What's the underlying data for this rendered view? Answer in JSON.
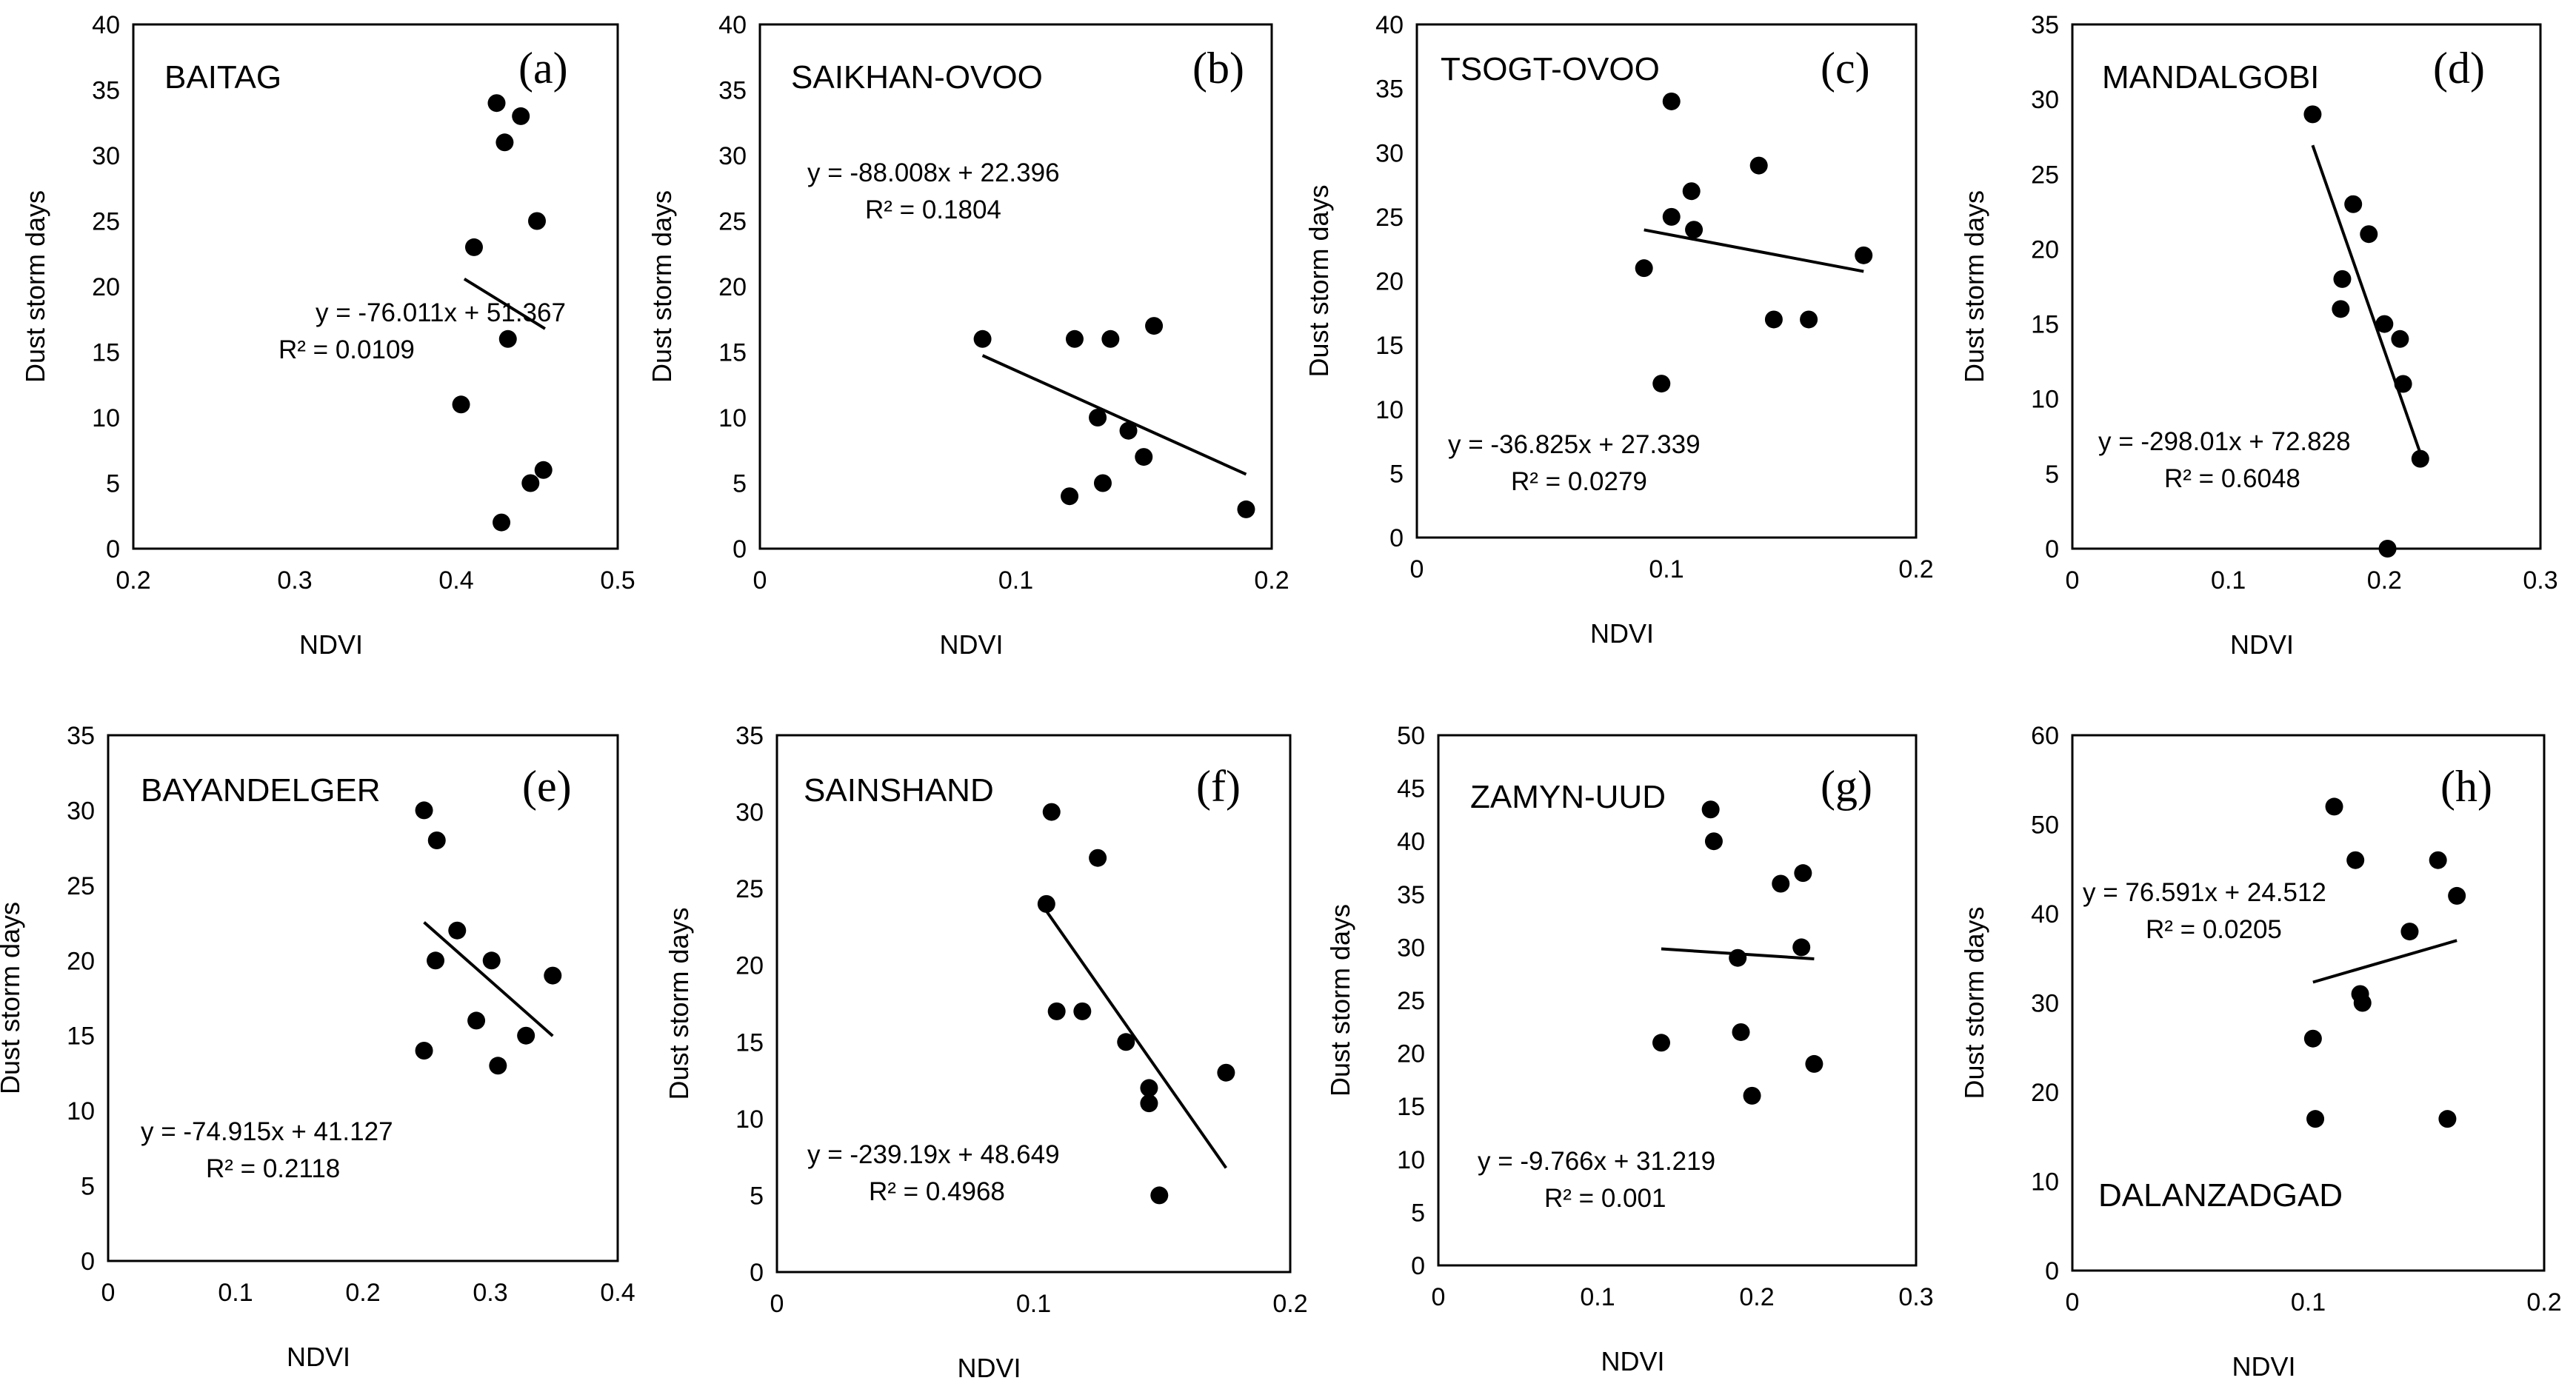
{
  "figure": {
    "y_axis_label": "Dust storm days",
    "x_axis_label": "NDVI"
  },
  "chart_data": [
    {
      "type": "scatter",
      "panel": "(a)",
      "station": "BAITAG",
      "xlabel": "NDVI",
      "ylabel": "Dust storm days",
      "xlim": [
        0.2,
        0.5
      ],
      "ylim": [
        0,
        40
      ],
      "xticks": [
        "0.2",
        "0.3",
        "0.4",
        "0.5"
      ],
      "yticks": [
        "0",
        "5",
        "10",
        "15",
        "20",
        "25",
        "30",
        "35",
        "40"
      ],
      "points": [
        [
          0.425,
          34
        ],
        [
          0.44,
          33
        ],
        [
          0.43,
          31
        ],
        [
          0.45,
          25
        ],
        [
          0.411,
          23
        ],
        [
          0.432,
          16
        ],
        [
          0.403,
          11
        ],
        [
          0.454,
          6
        ],
        [
          0.446,
          5
        ],
        [
          0.428,
          2
        ]
      ],
      "trendline": {
        "slope": -76.011,
        "intercept": 51.367,
        "x_range": [
          0.405,
          0.455
        ]
      },
      "equation": "y = -76.011x + 51.367",
      "r2": "R² = 0.0109"
    },
    {
      "type": "scatter",
      "panel": "(b)",
      "station": "SAIKHAN-OVOO",
      "xlabel": "NDVI",
      "ylabel": "Dust storm days",
      "xlim": [
        0,
        0.2
      ],
      "ylim": [
        0,
        40
      ],
      "xticks": [
        "0",
        "0.1",
        "0.2"
      ],
      "yticks": [
        "0",
        "5",
        "10",
        "15",
        "20",
        "25",
        "30",
        "35",
        "40"
      ],
      "points": [
        [
          0.087,
          16
        ],
        [
          0.123,
          16
        ],
        [
          0.137,
          16
        ],
        [
          0.154,
          17
        ],
        [
          0.132,
          10
        ],
        [
          0.144,
          9
        ],
        [
          0.15,
          7
        ],
        [
          0.134,
          5
        ],
        [
          0.121,
          4
        ],
        [
          0.19,
          3
        ]
      ],
      "trendline": {
        "slope": -88.008,
        "intercept": 22.396,
        "x_range": [
          0.087,
          0.19
        ]
      },
      "equation": "y = -88.008x + 22.396",
      "r2": "R² = 0.1804"
    },
    {
      "type": "scatter",
      "panel": "(c)",
      "station": "TSOGT-OVOO",
      "xlabel": "NDVI",
      "ylabel": "Dust storm days",
      "xlim": [
        0,
        0.2
      ],
      "ylim": [
        0,
        40
      ],
      "xticks": [
        "0",
        "0.1",
        "0.2"
      ],
      "yticks": [
        "0",
        "5",
        "10",
        "15",
        "20",
        "25",
        "30",
        "35",
        "40"
      ],
      "points": [
        [
          0.102,
          34
        ],
        [
          0.137,
          29
        ],
        [
          0.11,
          27
        ],
        [
          0.102,
          25
        ],
        [
          0.111,
          24
        ],
        [
          0.179,
          22
        ],
        [
          0.091,
          21
        ],
        [
          0.143,
          17
        ],
        [
          0.157,
          17
        ],
        [
          0.098,
          12
        ]
      ],
      "trendline": {
        "slope": -36.825,
        "intercept": 27.339,
        "x_range": [
          0.091,
          0.179
        ]
      },
      "equation": "y = -36.825x + 27.339",
      "r2": "R² = 0.0279"
    },
    {
      "type": "scatter",
      "panel": "(d)",
      "station": "MANDALGOBI",
      "xlabel": "NDVI",
      "ylabel": "Dust storm days",
      "xlim": [
        0,
        0.3
      ],
      "ylim": [
        0,
        35
      ],
      "xticks": [
        "0",
        "0.1",
        "0.2",
        "0.3"
      ],
      "yticks": [
        "0",
        "5",
        "10",
        "15",
        "20",
        "25",
        "30",
        "35"
      ],
      "points": [
        [
          0.154,
          29
        ],
        [
          0.18,
          23
        ],
        [
          0.19,
          21
        ],
        [
          0.173,
          18
        ],
        [
          0.172,
          16
        ],
        [
          0.2,
          15
        ],
        [
          0.21,
          14
        ],
        [
          0.212,
          11
        ],
        [
          0.223,
          6
        ],
        [
          0.202,
          0
        ]
      ],
      "trendline": {
        "slope": -298.01,
        "intercept": 72.828,
        "x_range": [
          0.154,
          0.223
        ]
      },
      "equation": "y = -298.01x + 72.828",
      "r2": "R² = 0.6048"
    },
    {
      "type": "scatter",
      "panel": "(e)",
      "station": "BAYANDELGER",
      "xlabel": "NDVI",
      "ylabel": "Dust storm days",
      "xlim": [
        0,
        0.4
      ],
      "ylim": [
        0,
        35
      ],
      "xticks": [
        "0",
        "0.1",
        "0.2",
        "0.3",
        "0.4"
      ],
      "yticks": [
        "0",
        "5",
        "10",
        "15",
        "20",
        "25",
        "30",
        "35"
      ],
      "points": [
        [
          0.248,
          30
        ],
        [
          0.258,
          28
        ],
        [
          0.274,
          22
        ],
        [
          0.257,
          20
        ],
        [
          0.301,
          20
        ],
        [
          0.349,
          19
        ],
        [
          0.289,
          16
        ],
        [
          0.328,
          15
        ],
        [
          0.248,
          14
        ],
        [
          0.306,
          13
        ]
      ],
      "trendline": {
        "slope": -74.915,
        "intercept": 41.127,
        "x_range": [
          0.248,
          0.349
        ]
      },
      "equation": "y = -74.915x + 41.127",
      "r2": "R² = 0.2118"
    },
    {
      "type": "scatter",
      "panel": "(f)",
      "station": "SAINSHAND",
      "xlabel": "NDVI",
      "ylabel": "Dust storm days",
      "xlim": [
        0,
        0.2
      ],
      "ylim": [
        0,
        35
      ],
      "xticks": [
        "0",
        "0.1",
        "0.2"
      ],
      "yticks": [
        "0",
        "5",
        "10",
        "15",
        "20",
        "25",
        "30",
        "35"
      ],
      "points": [
        [
          0.107,
          30
        ],
        [
          0.125,
          27
        ],
        [
          0.105,
          24
        ],
        [
          0.109,
          17
        ],
        [
          0.119,
          17
        ],
        [
          0.136,
          15
        ],
        [
          0.175,
          13
        ],
        [
          0.145,
          12
        ],
        [
          0.145,
          11
        ],
        [
          0.149,
          5
        ]
      ],
      "trendline": {
        "slope": -239.19,
        "intercept": 48.649,
        "x_range": [
          0.105,
          0.175
        ]
      },
      "equation": "y = -239.19x + 48.649",
      "r2": "R² = 0.4968"
    },
    {
      "type": "scatter",
      "panel": "(g)",
      "station": "ZAMYN-UUD",
      "xlabel": "NDVI",
      "ylabel": "Dust storm days",
      "xlim": [
        0,
        0.3
      ],
      "ylim": [
        0,
        50
      ],
      "xticks": [
        "0",
        "0.1",
        "0.2",
        "0.3"
      ],
      "yticks": [
        "0",
        "5",
        "10",
        "15",
        "20",
        "25",
        "30",
        "35",
        "40",
        "45",
        "50"
      ],
      "points": [
        [
          0.171,
          43
        ],
        [
          0.173,
          40
        ],
        [
          0.229,
          37
        ],
        [
          0.215,
          36
        ],
        [
          0.228,
          30
        ],
        [
          0.188,
          29
        ],
        [
          0.19,
          22
        ],
        [
          0.14,
          21
        ],
        [
          0.236,
          19
        ],
        [
          0.197,
          16
        ]
      ],
      "trendline": {
        "slope": -9.766,
        "intercept": 31.219,
        "x_range": [
          0.14,
          0.236
        ]
      },
      "equation": "y = -9.766x + 31.219",
      "r2": "R² = 0.001"
    },
    {
      "type": "scatter",
      "panel": "(h)",
      "station": "DALANZADGAD",
      "xlabel": "NDVI",
      "ylabel": "Dust storm days",
      "xlim": [
        0,
        0.2
      ],
      "ylim": [
        0,
        60
      ],
      "xticks": [
        "0",
        "0.1",
        "0.2"
      ],
      "yticks": [
        "0",
        "10",
        "20",
        "30",
        "40",
        "50",
        "60"
      ],
      "points": [
        [
          0.111,
          52
        ],
        [
          0.12,
          46
        ],
        [
          0.155,
          46
        ],
        [
          0.163,
          42
        ],
        [
          0.143,
          38
        ],
        [
          0.122,
          31
        ],
        [
          0.123,
          30
        ],
        [
          0.102,
          26
        ],
        [
          0.103,
          17
        ],
        [
          0.159,
          17
        ]
      ],
      "trendline": {
        "slope": 76.591,
        "intercept": 24.512,
        "x_range": [
          0.102,
          0.163
        ]
      },
      "equation": "y = 76.591x + 24.512",
      "r2": "R² = 0.0205"
    }
  ]
}
